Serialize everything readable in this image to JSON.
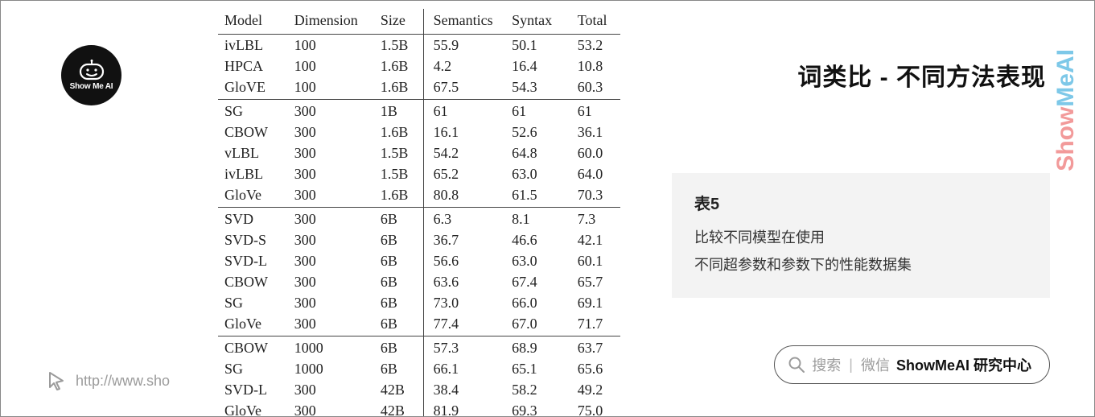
{
  "logo": {
    "text": "Show Me AI"
  },
  "url": {
    "text": "http://www.sho"
  },
  "title": "词类比 - 不同方法表现",
  "brand": {
    "part1": "Show",
    "part2": "MeAI"
  },
  "card": {
    "title": "表5",
    "line1": "比较不同模型在使用",
    "line2": "不同超参数和参数下的性能数据集"
  },
  "search": {
    "hint": "搜索",
    "channel": "微信",
    "strong": "ShowMeAI 研究中心"
  },
  "table": {
    "columns": [
      "Model",
      "Dimension",
      "Size",
      "Semantics",
      "Syntax",
      "Total"
    ],
    "groups": [
      [
        {
          "model": "ivLBL",
          "dim": "100",
          "size": "1.5B",
          "sem": "55.9",
          "syn": "50.1",
          "tot": "53.2"
        },
        {
          "model": "HPCA",
          "dim": "100",
          "size": "1.6B",
          "sem": "4.2",
          "syn": "16.4",
          "tot": "10.8"
        },
        {
          "model": "GloVE",
          "dim": "100",
          "size": "1.6B",
          "sem": "67.5",
          "syn": "54.3",
          "tot": "60.3"
        }
      ],
      [
        {
          "model": "SG",
          "dim": "300",
          "size": "1B",
          "sem": "61",
          "syn": "61",
          "tot": "61"
        },
        {
          "model": "CBOW",
          "dim": "300",
          "size": "1.6B",
          "sem": "16.1",
          "syn": "52.6",
          "tot": "36.1"
        },
        {
          "model": "vLBL",
          "dim": "300",
          "size": "1.5B",
          "sem": "54.2",
          "syn": "64.8",
          "tot": "60.0"
        },
        {
          "model": "ivLBL",
          "dim": "300",
          "size": "1.5B",
          "sem": "65.2",
          "syn": "63.0",
          "tot": "64.0"
        },
        {
          "model": "GloVe",
          "dim": "300",
          "size": "1.6B",
          "sem": "80.8",
          "syn": "61.5",
          "tot": "70.3"
        }
      ],
      [
        {
          "model": "SVD",
          "dim": "300",
          "size": "6B",
          "sem": "6.3",
          "syn": "8.1",
          "tot": "7.3"
        },
        {
          "model": "SVD-S",
          "dim": "300",
          "size": "6B",
          "sem": "36.7",
          "syn": "46.6",
          "tot": "42.1"
        },
        {
          "model": "SVD-L",
          "dim": "300",
          "size": "6B",
          "sem": "56.6",
          "syn": "63.0",
          "tot": "60.1"
        },
        {
          "model": "CBOW",
          "dim": "300",
          "size": "6B",
          "sem": "63.6",
          "syn": "67.4",
          "tot": "65.7"
        },
        {
          "model": "SG",
          "dim": "300",
          "size": "6B",
          "sem": "73.0",
          "syn": "66.0",
          "tot": "69.1"
        },
        {
          "model": "GloVe",
          "dim": "300",
          "size": "6B",
          "sem": "77.4",
          "syn": "67.0",
          "tot": "71.7"
        }
      ],
      [
        {
          "model": "CBOW",
          "dim": "1000",
          "size": "6B",
          "sem": "57.3",
          "syn": "68.9",
          "tot": "63.7"
        },
        {
          "model": "SG",
          "dim": "1000",
          "size": "6B",
          "sem": "66.1",
          "syn": "65.1",
          "tot": "65.6"
        },
        {
          "model": "SVD-L",
          "dim": "300",
          "size": "42B",
          "sem": "38.4",
          "syn": "58.2",
          "tot": "49.2"
        },
        {
          "model": "GloVe",
          "dim": "300",
          "size": "42B",
          "sem": "81.9",
          "syn": "69.3",
          "tot": "75.0"
        }
      ]
    ]
  }
}
